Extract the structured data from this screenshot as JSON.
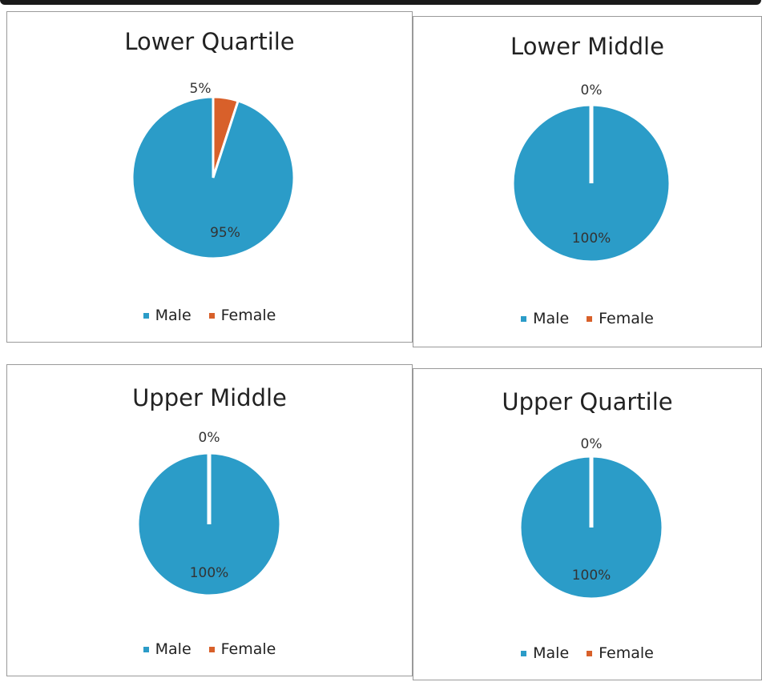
{
  "colors": {
    "male": "#2b9cc8",
    "female": "#d8602a",
    "separator": "#ffffff"
  },
  "chart_data": [
    {
      "type": "pie",
      "title": "Lower Quartile",
      "categories": [
        "Male",
        "Female"
      ],
      "values": [
        95,
        5
      ],
      "labels": [
        "95%",
        "5%"
      ],
      "legend_position": "bottom"
    },
    {
      "type": "pie",
      "title": "Lower Middle",
      "categories": [
        "Male",
        "Female"
      ],
      "values": [
        100,
        0
      ],
      "labels": [
        "100%",
        "0%"
      ],
      "legend_position": "bottom"
    },
    {
      "type": "pie",
      "title": "Upper Middle",
      "categories": [
        "Male",
        "Female"
      ],
      "values": [
        100,
        0
      ],
      "labels": [
        "100%",
        "0%"
      ],
      "legend_position": "bottom"
    },
    {
      "type": "pie",
      "title": "Upper Quartile",
      "categories": [
        "Male",
        "Female"
      ],
      "values": [
        100,
        0
      ],
      "labels": [
        "100%",
        "0%"
      ],
      "legend_position": "bottom"
    }
  ]
}
